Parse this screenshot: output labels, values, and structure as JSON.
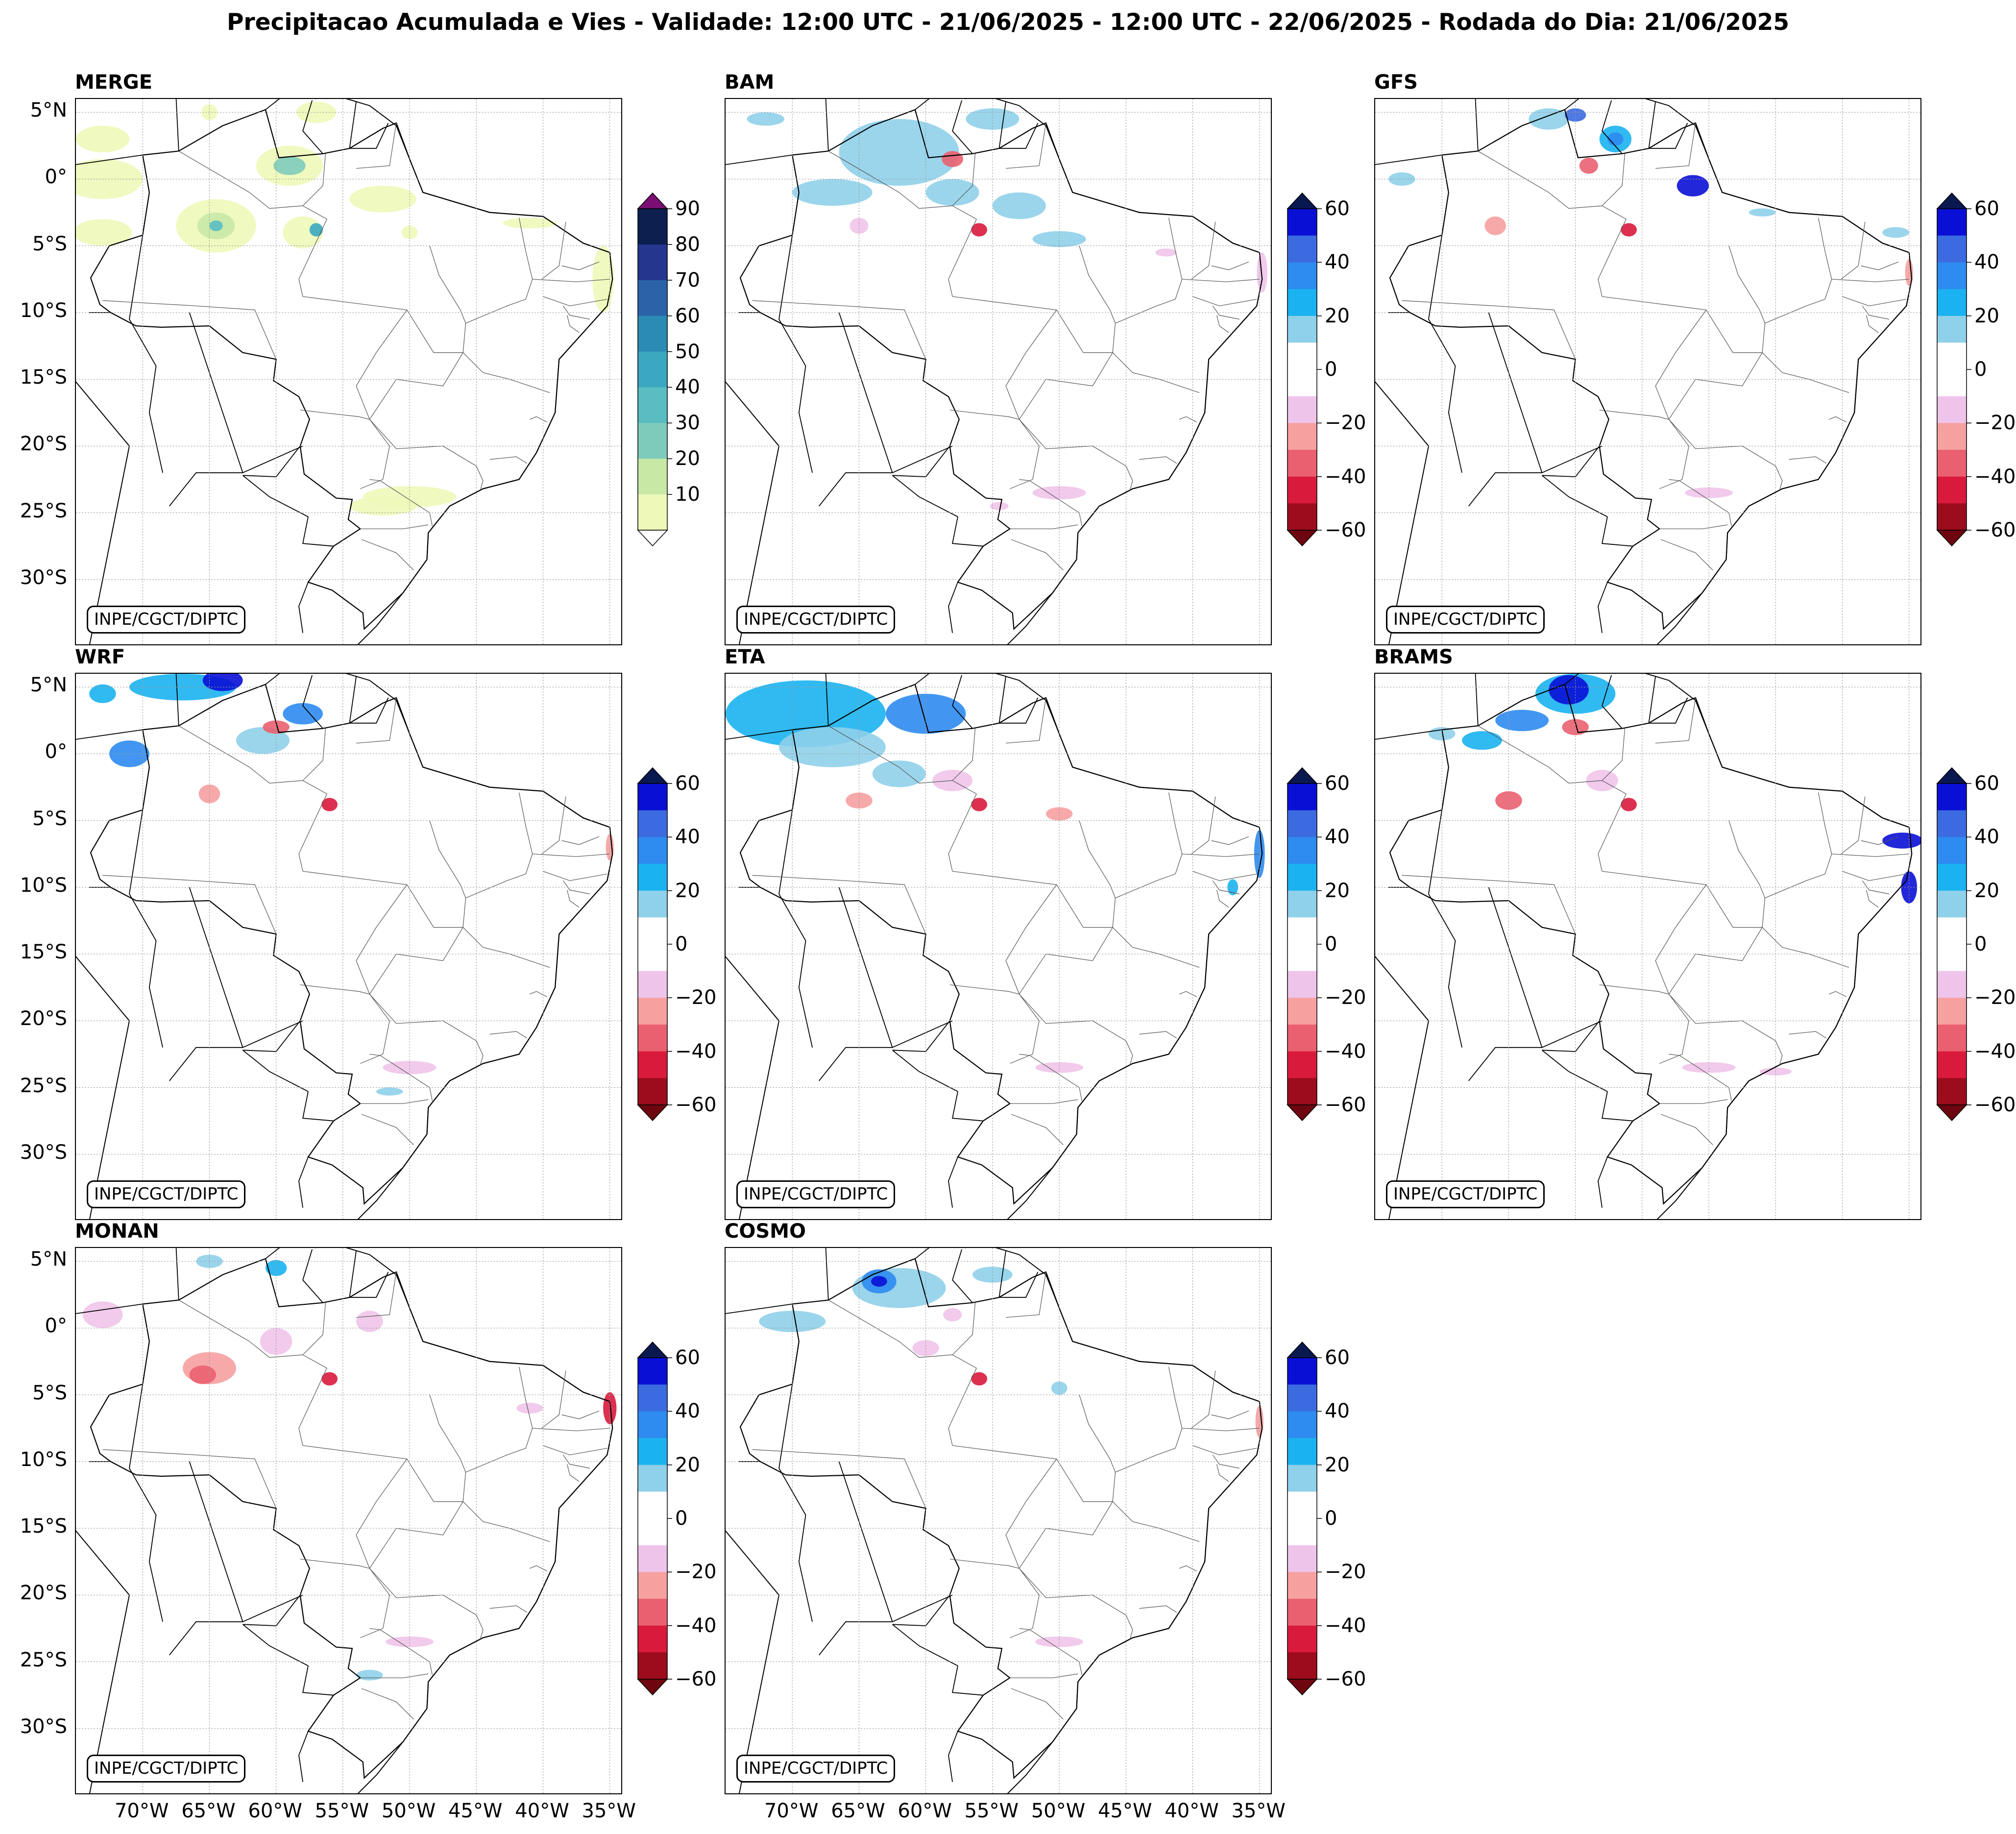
{
  "title": "Precipitacao Acumulada e Vies - Validade: 12:00 UTC - 21/06/2025 - 12:00 UTC - 22/06/2025 - Rodada do Dia: 21/06/2025",
  "credit": "INPE/CGCT/DIPTC",
  "lat_labels": [
    "5°N",
    "0°",
    "5°S",
    "10°S",
    "15°S",
    "20°S",
    "25°S",
    "30°S"
  ],
  "lon_labels": [
    "70°W",
    "65°W",
    "60°W",
    "55°W",
    "50°W",
    "45°W",
    "40°W",
    "35°W"
  ],
  "map_extent": {
    "lon_min": -75,
    "lon_max": -34,
    "lat_min": -35,
    "lat_max": 6
  },
  "precip_scale": {
    "ticks": [
      "90",
      "80",
      "70",
      "60",
      "50",
      "40",
      "30",
      "20",
      "10"
    ],
    "colors": [
      "#0c1f4e",
      "#25368f",
      "#2c63a8",
      "#2c8bb4",
      "#3ba7c0",
      "#59bdc2",
      "#7fcbbb",
      "#c8e8a6",
      "#eef8b8"
    ],
    "extend_max_color": "#7b0e73"
  },
  "bias_scale": {
    "ticks": [
      "60",
      "40",
      "20",
      "0",
      "−20",
      "−40",
      "−60"
    ],
    "colors": [
      "#0a0fd6",
      "#3c6ae0",
      "#2e8bf0",
      "#1ab2f0",
      "#8fd0ea",
      "#ffffff",
      "#ffffff",
      "#efc4ea",
      "#f6a0a0",
      "#ea6070",
      "#d91a3c",
      "#9c0c1c"
    ],
    "extend_max_color": "#0a1850",
    "extend_min_color": "#6e0610"
  },
  "panels": [
    {
      "name": "MERGE",
      "scale": "precip"
    },
    {
      "name": "BAM",
      "scale": "bias"
    },
    {
      "name": "GFS",
      "scale": "bias"
    },
    {
      "name": "WRF",
      "scale": "bias"
    },
    {
      "name": "ETA",
      "scale": "bias"
    },
    {
      "name": "BRAMS",
      "scale": "bias"
    },
    {
      "name": "MONAN",
      "scale": "bias"
    },
    {
      "name": "COSMO",
      "scale": "bias"
    }
  ]
}
